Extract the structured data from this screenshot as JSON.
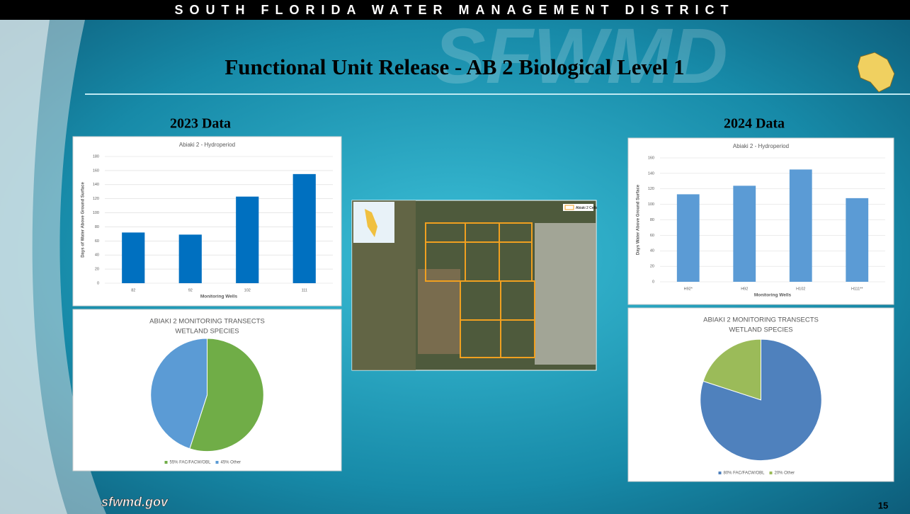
{
  "header": "SOUTH FLORIDA WATER MANAGEMENT DISTRICT",
  "watermark": "SFWMD",
  "title": "Functional Unit Release - AB 2 Biological Level 1",
  "left_heading": "2023 Data",
  "right_heading": "2024 Data",
  "map": {
    "legend": "Abiaki 2 Cells"
  },
  "footer": "sfwmd.gov",
  "page_number": "15",
  "chart_data": [
    {
      "type": "bar",
      "title": "Abiaki 2 - Hydroperiod",
      "x_label": "Monitoring Wells",
      "y_label": "Days of Water Above Ground Surface",
      "categories": [
        "82",
        "92",
        "102",
        "111"
      ],
      "values": [
        72,
        69,
        123,
        155
      ],
      "color": "#0070c0",
      "ylim": [
        0,
        180
      ],
      "yticks": [
        0,
        20,
        40,
        60,
        80,
        100,
        120,
        140,
        160,
        180
      ],
      "grid": true
    },
    {
      "type": "pie",
      "title": [
        "ABIAKI 2 MONITORING TRANSECTS",
        "WETLAND SPECIES"
      ],
      "labels": [
        "55% FAC/FACW/OBL",
        "45% Other"
      ],
      "values": [
        55,
        45
      ],
      "colors": [
        "#70ad47",
        "#5b9bd5"
      ]
    },
    {
      "type": "bar",
      "title": "Abiaki 2 - Hydroperiod",
      "x_label": "Monitoring Wells",
      "y_label": "Days Water Above Ground Surface",
      "categories": [
        "H92*",
        "H92",
        "H102",
        "H111**"
      ],
      "values": [
        113,
        124,
        145,
        108
      ],
      "color": "#5b9bd5",
      "ylim": [
        0,
        160
      ],
      "yticks": [
        0,
        20,
        40,
        60,
        80,
        100,
        120,
        140,
        160
      ],
      "grid": true
    },
    {
      "type": "pie",
      "title": [
        "ABIAKI 2 MONITORING TRANSECTS",
        "WETLAND SPECIES"
      ],
      "labels": [
        "80% FAC/FACW/OBL",
        "20% Other"
      ],
      "values": [
        80,
        20
      ],
      "colors": [
        "#4f81bd",
        "#9bbb59"
      ]
    }
  ]
}
